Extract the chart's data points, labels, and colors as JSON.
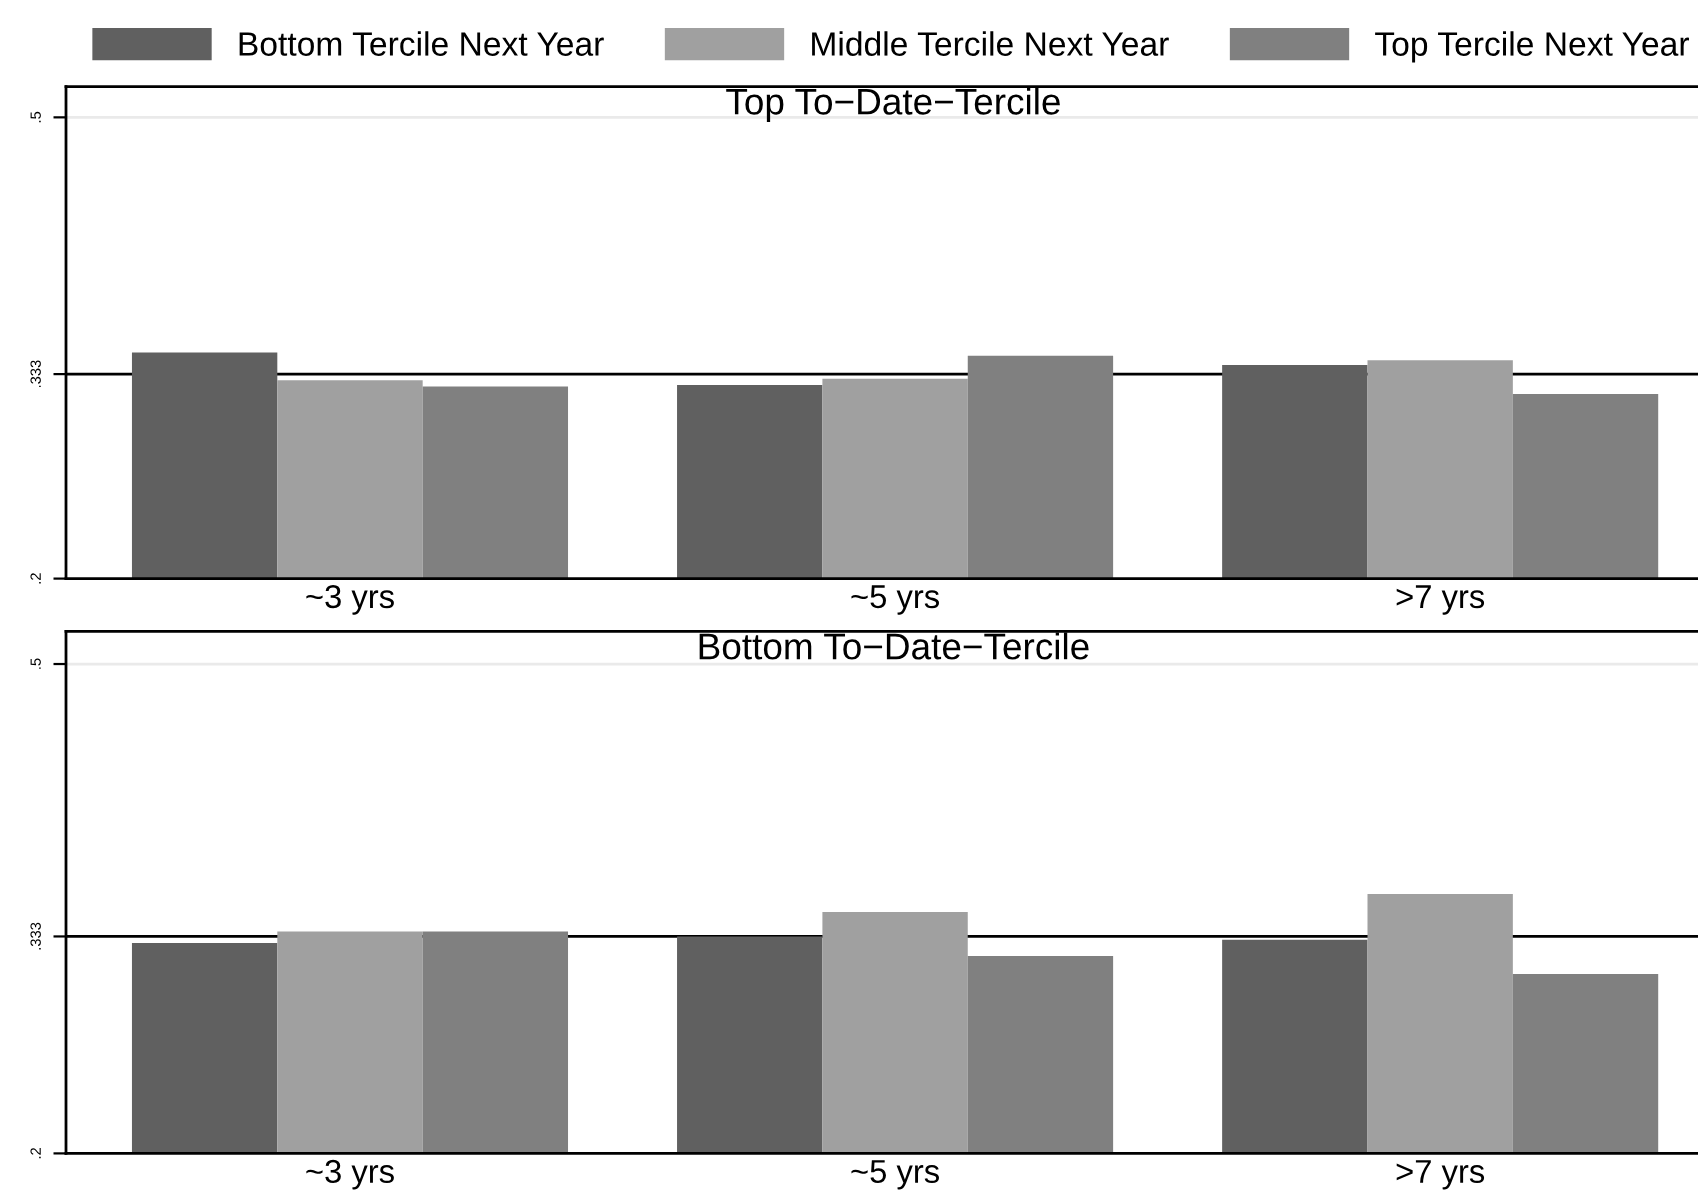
{
  "chart_data": [
    {
      "type": "bar",
      "title": "Top To−Date−Tercile",
      "categories": [
        "~3 yrs",
        "~5 yrs",
        ">7 yrs"
      ],
      "series": [
        {
          "name": "Bottom Tercile Next Year",
          "color": "#606060",
          "values": [
            0.347,
            0.326,
            0.339
          ]
        },
        {
          "name": "Middle Tercile Next Year",
          "color": "#a0a0a0",
          "values": [
            0.329,
            0.33,
            0.342
          ]
        },
        {
          "name": "Top Tercile Next Year",
          "color": "#808080",
          "values": [
            0.325,
            0.345,
            0.32
          ]
        }
      ],
      "ylim": [
        0.2,
        0.52
      ],
      "yticks": [
        {
          "value": 0.2,
          "label": ".2"
        },
        {
          "value": 0.333,
          "label": ".333"
        },
        {
          "value": 0.5,
          "label": ".5"
        }
      ],
      "ref_lines": [
        {
          "axis": "y",
          "value": 0.333,
          "color": "#000000"
        },
        {
          "axis": "y",
          "value": 0.5,
          "color": "#eaeaea"
        }
      ],
      "legend": "top"
    },
    {
      "type": "bar",
      "title": "Bottom To−Date−Tercile",
      "categories": [
        "~3 yrs",
        "~5 yrs",
        ">7 yrs"
      ],
      "series": [
        {
          "color": "#606060",
          "values": [
            0.329,
            0.333,
            0.331
          ]
        },
        {
          "color": "#a0a0a0",
          "values": [
            0.336,
            0.348,
            0.359
          ]
        },
        {
          "color": "#808080",
          "values": [
            0.336,
            0.321,
            0.31
          ]
        }
      ],
      "ylim": [
        0.2,
        0.52
      ],
      "yticks": [
        {
          "value": 0.2,
          "label": ".2"
        },
        {
          "value": 0.333,
          "label": ".333"
        },
        {
          "value": 0.5,
          "label": ".5"
        }
      ],
      "ref_lines": [
        {
          "axis": "y",
          "value": 0.333,
          "color": "#000000"
        },
        {
          "axis": "y",
          "value": 0.5,
          "color": "#eaeaea"
        }
      ]
    }
  ]
}
